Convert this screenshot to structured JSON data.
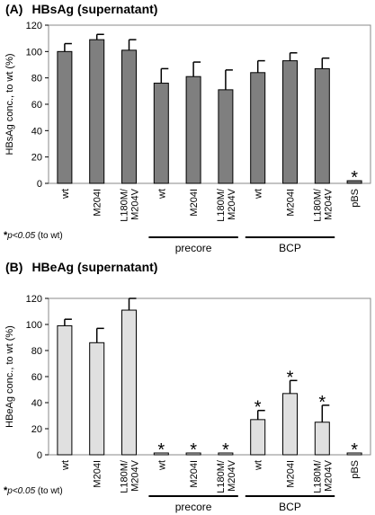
{
  "chart_data": [
    {
      "type": "bar",
      "panel_label": "(A)",
      "title": "HBsAg (supernatant)",
      "ylabel": "HBsAg conc., to wt (%)",
      "ylim": [
        0,
        120
      ],
      "yticks": [
        0,
        20,
        40,
        60,
        80,
        100,
        120
      ],
      "grid": false,
      "categories": [
        "wt",
        "M204I",
        "L180M/\nM204V",
        "wt",
        "M204I",
        "L180M/\nM204V",
        "wt",
        "M204I",
        "L180M/\nM204V",
        "pBS"
      ],
      "series": [
        {
          "values": [
            100,
            109,
            101,
            76,
            81,
            71,
            84,
            93,
            87,
            2
          ],
          "errors": [
            6,
            4,
            8,
            11,
            11,
            15,
            9,
            6,
            8,
            0
          ]
        }
      ],
      "bar_color": "#7f7f7f",
      "significant": [
        false,
        false,
        false,
        false,
        false,
        false,
        false,
        false,
        false,
        true
      ],
      "star_label": "*",
      "groups": [
        {
          "label": "precore",
          "from": 3,
          "to": 5
        },
        {
          "label": "BCP",
          "from": 6,
          "to": 8
        }
      ]
    },
    {
      "type": "bar",
      "panel_label": "(B)",
      "title": "HBeAg (supernatant)",
      "ylabel": "HBeAg conc., to wt (%)",
      "ylim": [
        0,
        120
      ],
      "yticks": [
        0,
        20,
        40,
        60,
        80,
        100,
        120
      ],
      "grid": false,
      "categories": [
        "wt",
        "M204I",
        "L180M/\nM204V",
        "wt",
        "M204I",
        "L180M/\nM204V",
        "wt",
        "M204I",
        "L180M/\nM204V",
        "pBS"
      ],
      "series": [
        {
          "values": [
            99,
            86,
            111,
            1,
            1,
            1,
            27,
            47,
            25,
            1
          ],
          "errors": [
            5,
            11,
            9,
            0,
            0,
            0,
            7,
            10,
            13,
            0
          ]
        }
      ],
      "bar_color": "#e0e0e0",
      "significant": [
        false,
        false,
        false,
        true,
        true,
        true,
        true,
        true,
        true,
        true
      ],
      "star_label": "*",
      "groups": [
        {
          "label": "precore",
          "from": 3,
          "to": 5
        },
        {
          "label": "BCP",
          "from": 6,
          "to": 8
        }
      ]
    }
  ],
  "footnote": {
    "star": "*",
    "pvalue": "p<0.05",
    "suffix": " (to wt)"
  }
}
